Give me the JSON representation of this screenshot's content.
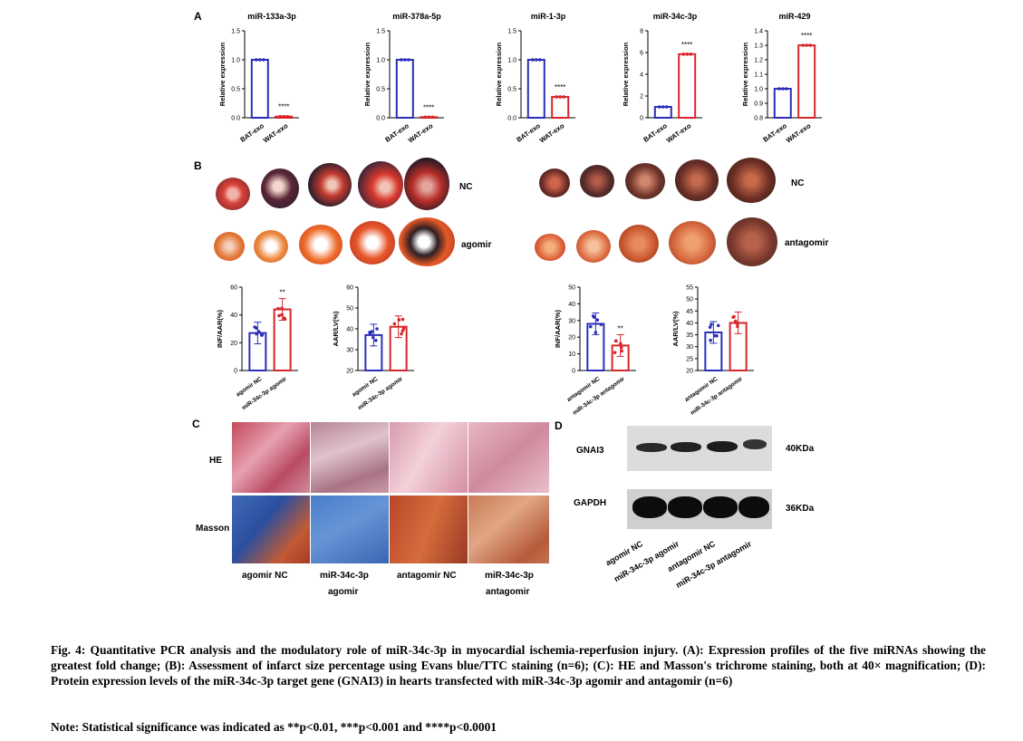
{
  "panels": {
    "a": "A",
    "b": "B",
    "c": "C",
    "d": "D"
  },
  "panel_a": {
    "ylabel": "Relative expression",
    "groups": [
      "BAT-exo",
      "WAT-exo"
    ]
  },
  "chart_data": [
    {
      "type": "bar",
      "title": "miR-133a-3p",
      "ylabel": "Relative expression",
      "categories": [
        "BAT-exo",
        "WAT-exo"
      ],
      "values": [
        1.0,
        0.02
      ],
      "ylim": [
        0,
        1.5
      ],
      "yticks": [
        "0.0",
        "0.5",
        "1.0",
        "1.5"
      ],
      "significance": "****"
    },
    {
      "type": "bar",
      "title": "miR-378a-5p",
      "ylabel": "Relative expression",
      "categories": [
        "BAT-exo",
        "WAT-exo"
      ],
      "values": [
        1.0,
        0.01
      ],
      "ylim": [
        0,
        1.5
      ],
      "yticks": [
        "0.0",
        "0.5",
        "1.0",
        "1.5"
      ],
      "significance": "****"
    },
    {
      "type": "bar",
      "title": "miR-1-3p",
      "ylabel": "Relative expression",
      "categories": [
        "BAT-exo",
        "WAT-exo"
      ],
      "values": [
        1.0,
        0.36
      ],
      "ylim": [
        0,
        1.5
      ],
      "yticks": [
        "0.0",
        "0.5",
        "1.0",
        "1.5"
      ],
      "significance": "****"
    },
    {
      "type": "bar",
      "title": "miR-34c-3p",
      "ylabel": "Relative expression",
      "categories": [
        "BAT-exo",
        "WAT-exo"
      ],
      "values": [
        1.0,
        5.85
      ],
      "ylim": [
        0,
        8
      ],
      "yticks": [
        "0",
        "2",
        "4",
        "6",
        "8"
      ],
      "significance": "****"
    },
    {
      "type": "bar",
      "title": "miR-429",
      "ylabel": "Relative expression",
      "categories": [
        "BAT-exo",
        "WAT-exo"
      ],
      "values": [
        1.0,
        1.3
      ],
      "ylim": [
        0.8,
        1.4
      ],
      "yticks": [
        "0.8",
        "0.9",
        "1.0",
        "1.1",
        "1.2",
        "1.3",
        "1.4"
      ],
      "significance": "****"
    },
    {
      "type": "bar",
      "title": "",
      "ylabel": "INF/AAR(%)",
      "categories": [
        "agomir NC",
        "miR-34c-3p agomir"
      ],
      "values": [
        27,
        44
      ],
      "ylim": [
        0,
        60
      ],
      "yticks": [
        "0",
        "20",
        "40",
        "60"
      ],
      "significance": "**"
    },
    {
      "type": "bar",
      "title": "",
      "ylabel": "AAR/LV(%)",
      "categories": [
        "agomir NC",
        "miR-34c-3p agomir"
      ],
      "values": [
        37,
        41
      ],
      "ylim": [
        20,
        60
      ],
      "yticks": [
        "20",
        "30",
        "40",
        "50",
        "60"
      ],
      "significance": ""
    },
    {
      "type": "bar",
      "title": "",
      "ylabel": "INF/AAR(%)",
      "categories": [
        "antagomir NC",
        "miR-34c-3p antagomir"
      ],
      "values": [
        28,
        15
      ],
      "ylim": [
        0,
        50
      ],
      "yticks": [
        "0",
        "10",
        "20",
        "30",
        "40",
        "50"
      ],
      "significance": "**"
    },
    {
      "type": "bar",
      "title": "",
      "ylabel": "AAR/LV(%)",
      "categories": [
        "antagomir NC",
        "miR-34c-3p antagomir"
      ],
      "values": [
        36,
        40
      ],
      "ylim": [
        20,
        55
      ],
      "yticks": [
        "20",
        "25",
        "30",
        "35",
        "40",
        "45",
        "50",
        "55"
      ],
      "significance": ""
    }
  ],
  "panel_b": {
    "row_labels": [
      "NC",
      "agomir",
      "NC",
      "antagomir"
    ]
  },
  "panel_c": {
    "row_labels": [
      "HE",
      "Masson"
    ],
    "col_labels": [
      "agomir NC",
      "miR-34c-3p",
      "agomir",
      "antagomir NC",
      "miR-34c-3p",
      "antagomir"
    ]
  },
  "panel_d": {
    "proteins": [
      "GNAI3",
      "GAPDH"
    ],
    "sizes": [
      "40KDa",
      "36KDa"
    ],
    "lanes": [
      "agomir NC",
      "miR-34c-3p agomir",
      "antagomir NC",
      "miR-34c-3p antagomir"
    ]
  },
  "caption": "Fig. 4: Quantitative PCR analysis and the modulatory role of miR-34c-3p in myocardial ischemia-reperfusion injury. (A): Expression profiles of the five miRNAs showing the greatest fold change; (B): Assessment of infarct size percentage using Evans blue/TTC staining (n=6); (C): HE and Masson's trichrome staining, both at 40× magnification; (D): Protein expression levels of the miR-34c-3p target gene (GNAI3) in hearts transfected with miR-34c-3p agomir and antagomir (n=6)",
  "note": "Note: Statistical significance was indicated as **p<0.01, ***p<0.001 and ****p<0.0001",
  "colors": {
    "blue": "#2b2fb8",
    "red": "#d8262a"
  }
}
